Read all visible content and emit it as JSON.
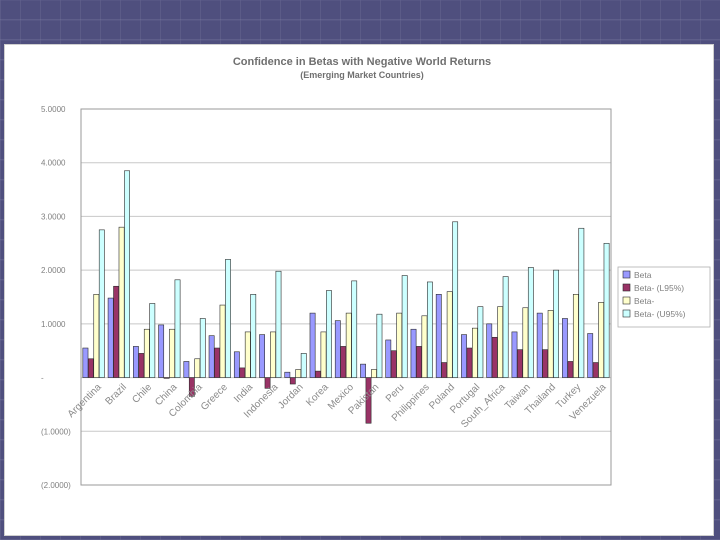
{
  "slide": {
    "background": "#4f4f7e"
  },
  "chart_data": {
    "type": "bar",
    "title": "Confidence in Betas with Negative World Returns",
    "subtitle": "(Emerging Market Countries)",
    "xlabel": "",
    "ylabel": "",
    "ylim": [
      -2,
      5
    ],
    "yticks": [
      5,
      4,
      3,
      2,
      1,
      0,
      -1,
      -2
    ],
    "ytick_labels": [
      "5.0000",
      "4.0000",
      "3.0000",
      "2.0000",
      "1.0000",
      "-",
      "(1.0000)",
      "(2.0000)"
    ],
    "categories": [
      "Argentina",
      "Brazil",
      "Chile",
      "China",
      "Colombia",
      "Greece",
      "India",
      "Indonesia",
      "Jordan",
      "Korea",
      "Mexico",
      "Pakistan",
      "Peru",
      "Philippines",
      "Poland",
      "Portugal",
      "South_Africa",
      "Taiwan",
      "Thailand",
      "Turkey",
      "Venezuela"
    ],
    "series": [
      {
        "name": "Beta",
        "color": "#9999ff",
        "values": [
          0.55,
          1.48,
          0.58,
          0.98,
          0.3,
          0.78,
          0.48,
          0.8,
          0.1,
          1.2,
          1.06,
          0.25,
          0.7,
          0.9,
          1.55,
          0.8,
          1.0,
          0.85,
          1.2,
          1.1,
          0.82
        ]
      },
      {
        "name": "Beta- (L95%)",
        "color": "#993366",
        "values": [
          0.35,
          1.7,
          0.45,
          0.0,
          -0.35,
          0.55,
          0.18,
          -0.2,
          -0.12,
          0.12,
          0.58,
          -0.85,
          0.5,
          0.58,
          0.28,
          0.55,
          0.75,
          0.52,
          0.52,
          0.3,
          0.28
        ]
      },
      {
        "name": "Beta-",
        "color": "#ffffcc",
        "values": [
          1.55,
          2.8,
          0.9,
          0.9,
          0.35,
          1.35,
          0.85,
          0.85,
          0.15,
          0.85,
          1.2,
          0.15,
          1.2,
          1.15,
          1.6,
          0.92,
          1.32,
          1.3,
          1.25,
          1.55,
          1.4
        ]
      },
      {
        "name": "Beta- (U95%)",
        "color": "#ccffff",
        "values": [
          2.75,
          3.85,
          1.38,
          1.82,
          1.1,
          2.2,
          1.55,
          1.98,
          0.45,
          1.62,
          1.8,
          1.18,
          1.9,
          1.78,
          2.9,
          1.32,
          1.88,
          2.05,
          2.0,
          2.78,
          2.5
        ]
      }
    ],
    "grid": true,
    "legend": "right"
  }
}
